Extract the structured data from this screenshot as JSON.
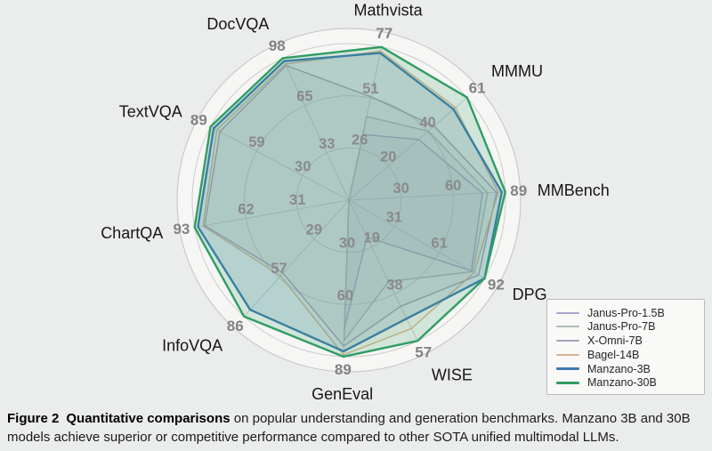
{
  "figure": {
    "caption": {
      "label": "Figure 2",
      "title": "Quantitative comparisons",
      "body": "on popular understanding and generation benchmarks. Manzano 3B and 30B models achieve superior or competitive performance compared to other SOTA unified multimodal LLMs."
    }
  },
  "chart_data": {
    "type": "radar",
    "title": "",
    "grid": true,
    "legend_position": "lower right",
    "scale_note": "each axis runs from 0 at center to its own max; gridline ticks at 1/3, 2/3 and max",
    "axes": [
      {
        "label": "Mathvista",
        "max": 77,
        "ticks": [
          26,
          51,
          77
        ]
      },
      {
        "label": "MMMU",
        "max": 61,
        "ticks": [
          20,
          40,
          61
        ]
      },
      {
        "label": "MMBench",
        "max": 89,
        "ticks": [
          30,
          60,
          89
        ]
      },
      {
        "label": "DPG",
        "max": 92,
        "ticks": [
          31,
          61,
          92
        ]
      },
      {
        "label": "WISE",
        "max": 57,
        "ticks": [
          19,
          38,
          57
        ]
      },
      {
        "label": "GenEval",
        "max": 89,
        "ticks": [
          30,
          60,
          89
        ]
      },
      {
        "label": "InfoVQA",
        "max": 86,
        "ticks": [
          29,
          57,
          86
        ]
      },
      {
        "label": "ChartQA",
        "max": 93,
        "ticks": [
          31,
          62,
          93
        ]
      },
      {
        "label": "TextVQA",
        "max": 89,
        "ticks": [
          30,
          59,
          89
        ]
      },
      {
        "label": "DocVQA",
        "max": 98,
        "ticks": [
          33,
          65,
          98
        ]
      }
    ],
    "series": [
      {
        "name": "Janus-Pro-1.5B",
        "color": "#a8a5ce",
        "emphasis": false,
        "values": [
          33,
          36,
          76,
          83,
          15,
          73,
          0,
          0,
          0,
          0
        ]
      },
      {
        "name": "Janus-Pro-7B",
        "color": "#aebcb3",
        "emphasis": false,
        "values": [
          42,
          41,
          79,
          84,
          33,
          80,
          0,
          0,
          0,
          0
        ]
      },
      {
        "name": "X-Omni-7B",
        "color": "#a9a0ba",
        "emphasis": false,
        "values": [
          52,
          44,
          84,
          88,
          43,
          83,
          54,
          87,
          83,
          93
        ]
      },
      {
        "name": "Bagel-14B",
        "color": "#d8b38c",
        "emphasis": false,
        "values": [
          75,
          55,
          85,
          85,
          52,
          88,
          56,
          88,
          85,
          94
        ]
      },
      {
        "name": "Manzano-3B",
        "color": "#3d7aae",
        "emphasis": true,
        "values": [
          74,
          54,
          87,
          92,
          48,
          86,
          81,
          91,
          87,
          96
        ]
      },
      {
        "name": "Manzano-30B",
        "color": "#2f9d63",
        "emphasis": true,
        "values": [
          77,
          61,
          89,
          92,
          57,
          89,
          86,
          93,
          89,
          98
        ]
      }
    ],
    "colors": {
      "page_background": "#ebecec",
      "polar_background": "#f6f6f5",
      "gridline": "#cccccc",
      "tick_label": "#8a8a8a",
      "category_label": "#161616"
    }
  }
}
